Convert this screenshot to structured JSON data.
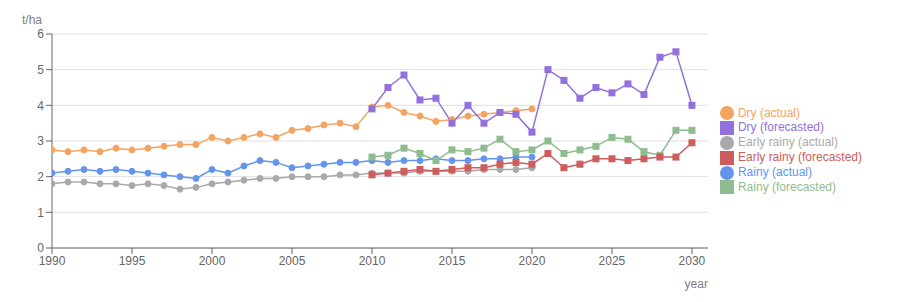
{
  "chart_data": {
    "type": "line",
    "xlabel": "year",
    "ylabel": "t/ha",
    "xlim": [
      1990,
      2031
    ],
    "xticks": [
      1990,
      1995,
      2000,
      2005,
      2010,
      2015,
      2020,
      2025,
      2030
    ],
    "ylim": [
      0,
      6
    ],
    "yticks": [
      0,
      1,
      2,
      3,
      4,
      5,
      6
    ],
    "grid": true,
    "legend": "right",
    "series": [
      {
        "name": "Dry (actual)",
        "color": "#F4A460",
        "marker": "circle",
        "line_style": "solid",
        "x": [
          1990,
          1991,
          1992,
          1993,
          1994,
          1995,
          1996,
          1997,
          1998,
          1999,
          2000,
          2001,
          2002,
          2003,
          2004,
          2005,
          2006,
          2007,
          2008,
          2009,
          2010,
          2011,
          2012,
          2013,
          2014,
          2015,
          2016,
          2017,
          2018,
          2019,
          2020
        ],
        "values": [
          2.75,
          2.7,
          2.75,
          2.7,
          2.8,
          2.75,
          2.8,
          2.85,
          2.9,
          2.9,
          3.1,
          3.0,
          3.1,
          3.2,
          3.1,
          3.3,
          3.35,
          3.45,
          3.5,
          3.4,
          3.95,
          4.0,
          3.8,
          3.7,
          3.55,
          3.6,
          3.7,
          3.75,
          3.8,
          3.85,
          3.9
        ]
      },
      {
        "name": "Dry (forecasted)",
        "color": "#9370DB",
        "marker": "square",
        "line_style": "solid",
        "x": [
          2010,
          2011,
          2012,
          2013,
          2014,
          2015,
          2016,
          2017,
          2018,
          2019,
          2020,
          2021,
          2022,
          2023,
          2024,
          2025,
          2026,
          2027,
          2028,
          2029,
          2030
        ],
        "values": [
          3.9,
          4.5,
          4.85,
          4.15,
          4.2,
          3.5,
          4.0,
          3.5,
          3.8,
          3.75,
          3.25,
          5.0,
          4.7,
          4.2,
          4.5,
          4.35,
          4.6,
          4.3,
          5.35,
          5.5,
          4.0
        ]
      },
      {
        "name": "Rainy (actual)",
        "color": "#6495ED",
        "marker": "circle",
        "line_style": "solid",
        "x": [
          1990,
          1991,
          1992,
          1993,
          1994,
          1995,
          1996,
          1997,
          1998,
          1999,
          2000,
          2001,
          2002,
          2003,
          2004,
          2005,
          2006,
          2007,
          2008,
          2009,
          2010,
          2011,
          2012,
          2013,
          2014,
          2015,
          2016,
          2017,
          2018,
          2019,
          2020
        ],
        "values": [
          2.1,
          2.15,
          2.2,
          2.15,
          2.2,
          2.15,
          2.1,
          2.05,
          2.0,
          1.95,
          2.2,
          2.1,
          2.3,
          2.45,
          2.4,
          2.25,
          2.3,
          2.35,
          2.4,
          2.4,
          2.45,
          2.4,
          2.45,
          2.45,
          2.5,
          2.45,
          2.45,
          2.5,
          2.5,
          2.55,
          2.55
        ]
      },
      {
        "name": "Rainy (forecasted)",
        "color": "#8FBC8F",
        "marker": "square",
        "line_style": "solid",
        "x": [
          2010,
          2011,
          2012,
          2013,
          2014,
          2015,
          2016,
          2017,
          2018,
          2019,
          2020,
          2021,
          2022,
          2023,
          2024,
          2025,
          2026,
          2027,
          2028,
          2029,
          2030
        ],
        "values": [
          2.55,
          2.6,
          2.8,
          2.65,
          2.45,
          2.75,
          2.7,
          2.8,
          3.05,
          2.7,
          2.75,
          3.0,
          2.65,
          2.75,
          2.85,
          3.1,
          3.05,
          2.7,
          2.6,
          3.3,
          3.3
        ]
      },
      {
        "name": "Early rainy (actual)",
        "color": "#A9A9A9",
        "marker": "circle",
        "line_style": "solid",
        "x": [
          1990,
          1991,
          1992,
          1993,
          1994,
          1995,
          1996,
          1997,
          1998,
          1999,
          2000,
          2001,
          2002,
          2003,
          2004,
          2005,
          2006,
          2007,
          2008,
          2009,
          2010,
          2011,
          2012,
          2013,
          2014,
          2015,
          2016,
          2017,
          2018,
          2019,
          2020
        ],
        "values": [
          1.8,
          1.85,
          1.85,
          1.8,
          1.8,
          1.75,
          1.8,
          1.75,
          1.65,
          1.7,
          1.8,
          1.85,
          1.9,
          1.95,
          1.95,
          2.0,
          2.0,
          2.0,
          2.05,
          2.05,
          2.1,
          2.1,
          2.1,
          2.15,
          2.15,
          2.15,
          2.15,
          2.2,
          2.2,
          2.2,
          2.25
        ]
      },
      {
        "name": "Early rainy (forecasted)",
        "color": "#CD5C5C",
        "marker": "square",
        "line_style": "solid",
        "x": [
          2010,
          2011,
          2012,
          2013,
          2014,
          2015,
          2016,
          2017,
          2018,
          2019,
          2020,
          2021,
          2022,
          2023,
          2024,
          2025,
          2026,
          2027,
          2028,
          2029,
          2030
        ],
        "values": [
          2.05,
          2.1,
          2.15,
          2.2,
          2.15,
          2.2,
          2.25,
          2.25,
          2.35,
          2.4,
          2.35,
          2.65,
          2.25,
          2.35,
          2.5,
          2.5,
          2.45,
          2.5,
          2.55,
          2.55,
          2.95
        ]
      }
    ]
  }
}
